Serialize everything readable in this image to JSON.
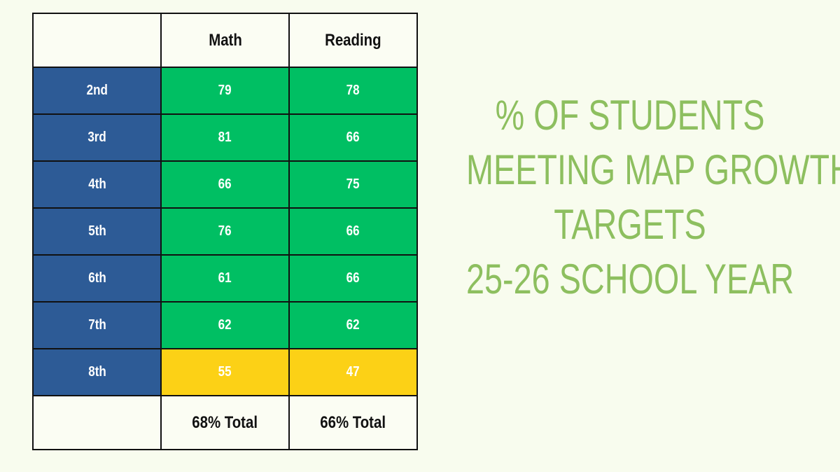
{
  "table": {
    "header": [
      "Math",
      "Reading"
    ],
    "rows": [
      {
        "grade": "2nd",
        "math": 79,
        "reading": 78,
        "color": "#00bf63"
      },
      {
        "grade": "3rd",
        "math": 81,
        "reading": 66,
        "color": "#00bf63"
      },
      {
        "grade": "4th",
        "math": 66,
        "reading": 75,
        "color": "#00bf63"
      },
      {
        "grade": "5th",
        "math": 76,
        "reading": 66,
        "color": "#00bf63"
      },
      {
        "grade": "6th",
        "math": 61,
        "reading": 66,
        "color": "#00bf63"
      },
      {
        "grade": "7th",
        "math": 62,
        "reading": 62,
        "color": "#00bf63"
      },
      {
        "grade": "8th",
        "math": 55,
        "reading": 47,
        "color": "#fcd116"
      }
    ],
    "totals": [
      "68% Total",
      "66% Total"
    ],
    "grade_color": "#2d5b96"
  },
  "title": {
    "lines": [
      "% OF STUDENTS",
      "MEETING MAP GROWTH",
      "TARGETS",
      "25-26 SCHOOL YEAR"
    ],
    "color": "#8dbf5f"
  }
}
